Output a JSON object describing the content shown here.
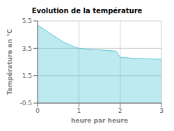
{
  "chart_data": {
    "type": "area",
    "title": "Evolution de la température",
    "xlabel": "heure par heure",
    "ylabel": "Température en °C",
    "x": [
      0,
      0.1,
      0.2,
      0.3,
      0.4,
      0.5,
      0.6,
      0.7,
      0.8,
      0.9,
      1.0,
      1.1,
      1.2,
      1.3,
      1.4,
      1.5,
      1.6,
      1.7,
      1.8,
      1.9,
      2.0,
      2.1,
      2.2,
      2.3,
      2.4,
      2.5,
      2.6,
      2.7,
      2.8,
      2.9,
      3.0
    ],
    "values": [
      5.2,
      5.0,
      4.8,
      4.6,
      4.4,
      4.2,
      4.0,
      3.85,
      3.72,
      3.6,
      3.5,
      3.47,
      3.44,
      3.42,
      3.4,
      3.38,
      3.36,
      3.34,
      3.32,
      3.3,
      2.85,
      2.82,
      2.8,
      2.78,
      2.76,
      2.75,
      2.74,
      2.73,
      2.72,
      2.71,
      2.7
    ],
    "color": "#5bc8d8",
    "xlim": [
      0,
      3
    ],
    "ylim": [
      -0.5,
      5.5
    ],
    "xticks": [
      0,
      1,
      2,
      3
    ],
    "yticks": [
      -0.5,
      1.5,
      3.5,
      5.5
    ],
    "grid": true
  }
}
